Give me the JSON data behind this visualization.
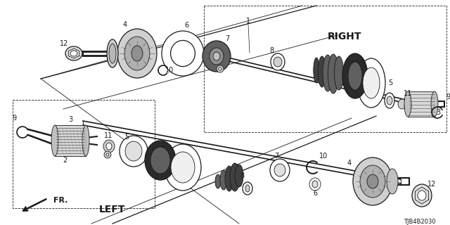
{
  "bg_color": "#ffffff",
  "line_color": "#000000",
  "fig_width": 6.4,
  "fig_height": 3.2,
  "dpi": 100,
  "title_code": "TJB4B2030",
  "right_label": "RIGHT",
  "left_label": "LEFT",
  "fr_label": "FR."
}
